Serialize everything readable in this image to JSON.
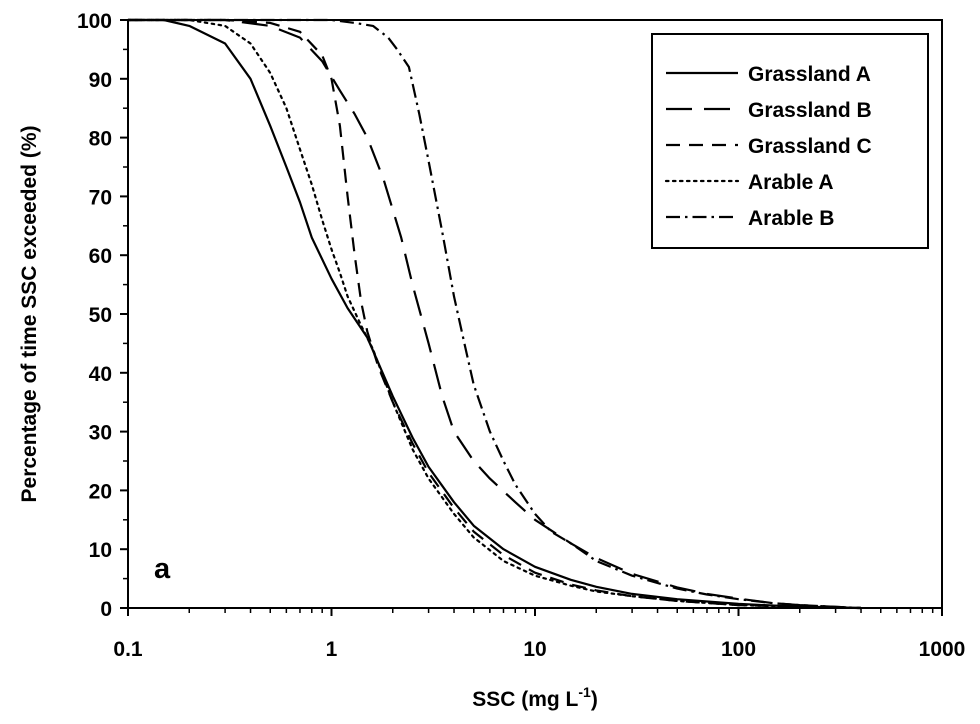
{
  "chart_data": {
    "type": "line",
    "title": "",
    "panel_label": "a",
    "xlabel": "SSC (mg L",
    "xlabel_sup": "-1",
    "xlabel_end": ")",
    "ylabel": "Percentage of time SSC exceeded (%)",
    "xscale": "log",
    "xlim": [
      0.1,
      1000
    ],
    "ylim": [
      0,
      100
    ],
    "x_ticks": [
      0.1,
      1,
      10,
      100,
      1000
    ],
    "x_tick_labels": [
      "0.1",
      "1",
      "10",
      "100",
      "1000"
    ],
    "y_ticks": [
      0,
      10,
      20,
      30,
      40,
      50,
      60,
      70,
      80,
      90,
      100
    ],
    "y_tick_labels": [
      "0",
      "10",
      "20",
      "30",
      "40",
      "50",
      "60",
      "70",
      "80",
      "90",
      "100"
    ],
    "grid": false,
    "legend_position": "top-right",
    "series": [
      {
        "name": "Grassland A",
        "dash": "solid",
        "points": [
          [
            0.1,
            100
          ],
          [
            0.15,
            100
          ],
          [
            0.2,
            99
          ],
          [
            0.3,
            96
          ],
          [
            0.4,
            90
          ],
          [
            0.5,
            82
          ],
          [
            0.6,
            75
          ],
          [
            0.7,
            69
          ],
          [
            0.8,
            63
          ],
          [
            1,
            56
          ],
          [
            1.2,
            51
          ],
          [
            1.5,
            46
          ],
          [
            2,
            36
          ],
          [
            2.5,
            29
          ],
          [
            3,
            24
          ],
          [
            4,
            18
          ],
          [
            5,
            14
          ],
          [
            7,
            10
          ],
          [
            10,
            7
          ],
          [
            15,
            4.8
          ],
          [
            20,
            3.6
          ],
          [
            30,
            2.4
          ],
          [
            50,
            1.5
          ],
          [
            70,
            1.1
          ],
          [
            100,
            0.7
          ],
          [
            150,
            0.4
          ],
          [
            200,
            0.25
          ],
          [
            300,
            0.1
          ],
          [
            400,
            0
          ]
        ]
      },
      {
        "name": "Grassland B",
        "dash": "long-dash",
        "points": [
          [
            0.1,
            100
          ],
          [
            0.3,
            100
          ],
          [
            0.5,
            99
          ],
          [
            0.7,
            97
          ],
          [
            0.9,
            93
          ],
          [
            1.1,
            88
          ],
          [
            1.3,
            84
          ],
          [
            1.5,
            80
          ],
          [
            1.8,
            73
          ],
          [
            2.2,
            63
          ],
          [
            2.5,
            55
          ],
          [
            3,
            45
          ],
          [
            3.5,
            36
          ],
          [
            4,
            30
          ],
          [
            5,
            25
          ],
          [
            6,
            22
          ],
          [
            8,
            18
          ],
          [
            10,
            15
          ],
          [
            15,
            11
          ],
          [
            20,
            8.5
          ],
          [
            30,
            5.8
          ],
          [
            50,
            3.5
          ],
          [
            70,
            2.4
          ],
          [
            100,
            1.6
          ],
          [
            150,
            0.8
          ],
          [
            200,
            0.5
          ],
          [
            300,
            0.2
          ],
          [
            400,
            0
          ]
        ]
      },
      {
        "name": "Grassland C",
        "dash": "short-dash",
        "points": [
          [
            0.1,
            100
          ],
          [
            0.3,
            100
          ],
          [
            0.5,
            99.5
          ],
          [
            0.7,
            98
          ],
          [
            0.9,
            94
          ],
          [
            1.0,
            90
          ],
          [
            1.1,
            82
          ],
          [
            1.2,
            70
          ],
          [
            1.3,
            60
          ],
          [
            1.4,
            52
          ],
          [
            1.5,
            47
          ],
          [
            1.7,
            41
          ],
          [
            2,
            35
          ],
          [
            2.5,
            28
          ],
          [
            3,
            23
          ],
          [
            4,
            17
          ],
          [
            5,
            13
          ],
          [
            7,
            9
          ],
          [
            10,
            6
          ],
          [
            15,
            4
          ],
          [
            20,
            3
          ],
          [
            30,
            2
          ],
          [
            50,
            1.2
          ],
          [
            100,
            0.5
          ],
          [
            200,
            0.2
          ],
          [
            300,
            0.05
          ],
          [
            400,
            0
          ]
        ]
      },
      {
        "name": "Arable A",
        "dash": "dotted",
        "points": [
          [
            0.1,
            100
          ],
          [
            0.2,
            100
          ],
          [
            0.3,
            99
          ],
          [
            0.4,
            96
          ],
          [
            0.5,
            91
          ],
          [
            0.6,
            85
          ],
          [
            0.7,
            78
          ],
          [
            0.8,
            72
          ],
          [
            0.9,
            66
          ],
          [
            1.0,
            61
          ],
          [
            1.1,
            57
          ],
          [
            1.2,
            53
          ],
          [
            1.4,
            48
          ],
          [
            1.6,
            44
          ],
          [
            2,
            35
          ],
          [
            2.5,
            27
          ],
          [
            3,
            22
          ],
          [
            4,
            16
          ],
          [
            5,
            12
          ],
          [
            7,
            8
          ],
          [
            10,
            5.5
          ],
          [
            15,
            3.8
          ],
          [
            20,
            2.8
          ],
          [
            30,
            2
          ],
          [
            50,
            1.2
          ],
          [
            100,
            0.5
          ],
          [
            200,
            0.2
          ],
          [
            300,
            0.05
          ],
          [
            400,
            0
          ]
        ]
      },
      {
        "name": "Arable B",
        "dash": "dash-dot",
        "points": [
          [
            0.1,
            100
          ],
          [
            1.0,
            100
          ],
          [
            1.3,
            99.5
          ],
          [
            1.6,
            99
          ],
          [
            1.9,
            97
          ],
          [
            2.1,
            95
          ],
          [
            2.4,
            92
          ],
          [
            2.7,
            84
          ],
          [
            3,
            76
          ],
          [
            3.5,
            64
          ],
          [
            4,
            53
          ],
          [
            4.5,
            45
          ],
          [
            5,
            38
          ],
          [
            6,
            30
          ],
          [
            7,
            25
          ],
          [
            8,
            21
          ],
          [
            10,
            16
          ],
          [
            12,
            13
          ],
          [
            15,
            11
          ],
          [
            20,
            8
          ],
          [
            30,
            5.5
          ],
          [
            50,
            3.3
          ],
          [
            70,
            2.3
          ],
          [
            100,
            1.5
          ],
          [
            150,
            0.8
          ],
          [
            200,
            0.5
          ],
          [
            300,
            0.2
          ],
          [
            400,
            0
          ]
        ]
      }
    ]
  }
}
